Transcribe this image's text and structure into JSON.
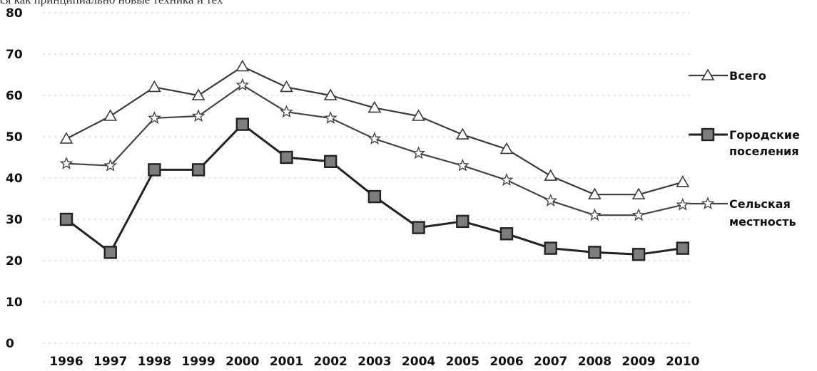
{
  "header_text": "ся как принципиально новые техника и тех",
  "chart_data": {
    "type": "line",
    "title": "",
    "xlabel": "",
    "ylabel": "",
    "ylim": [
      0,
      80
    ],
    "yticks": [
      0,
      10,
      20,
      30,
      40,
      50,
      60,
      70,
      80
    ],
    "grid": true,
    "legend_position": "right",
    "x": [
      "1996",
      "1997",
      "1998",
      "1999",
      "2000",
      "2001",
      "2002",
      "2003",
      "2004",
      "2005",
      "2006",
      "2007",
      "2008",
      "2009",
      "2010"
    ],
    "series": [
      {
        "name": "Всего",
        "marker": "triangle",
        "color": "#3a3a3a",
        "values": [
          49.5,
          55,
          62,
          60,
          67,
          62,
          60,
          57,
          55,
          50.5,
          47,
          40.5,
          36,
          36,
          39
        ]
      },
      {
        "name": "Городские поселения",
        "marker": "square",
        "color": "#222222",
        "values": [
          30,
          22,
          42,
          42,
          53,
          45,
          44,
          35.5,
          28,
          29.5,
          26.5,
          23,
          22,
          21.5,
          23
        ]
      },
      {
        "name": "Сельская местность",
        "marker": "star",
        "color": "#444444",
        "values": [
          43.5,
          43,
          54.5,
          55,
          62.5,
          56,
          54.5,
          49.5,
          46,
          43,
          39.5,
          34.5,
          31,
          31,
          33.5
        ]
      }
    ],
    "legend": [
      {
        "lines": [
          "Всего"
        ]
      },
      {
        "lines": [
          "Городские",
          "поселения"
        ]
      },
      {
        "lines": [
          "Сельская",
          "местность"
        ]
      }
    ]
  }
}
